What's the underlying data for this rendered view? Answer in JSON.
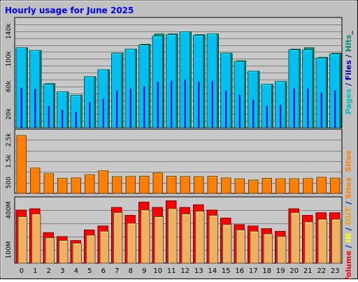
{
  "chart_data": {
    "type": "bar",
    "title": "Hourly usage for June 2025",
    "categories": [
      "0",
      "1",
      "2",
      "3",
      "4",
      "5",
      "6",
      "7",
      "8",
      "9",
      "10",
      "11",
      "12",
      "13",
      "14",
      "15",
      "16",
      "17",
      "18",
      "19",
      "20",
      "21",
      "22",
      "23"
    ],
    "panels": [
      {
        "id": "hits",
        "ylabel_parts": [
          {
            "text": "Pages",
            "color": "#00C0C0"
          },
          {
            "text": " / ",
            "color": "#00008B"
          },
          {
            "text": "Files",
            "color": "#0000CC"
          },
          {
            "text": " / ",
            "color": "#00008B"
          },
          {
            "text": "Hits",
            "color": "#008F6B"
          },
          {
            "text": "_",
            "color": "#00008B"
          }
        ],
        "ylim": [
          0,
          160000
        ],
        "yticks": [
          {
            "value": 20000,
            "label": "20k"
          },
          {
            "value": 60000,
            "label": "60k"
          },
          {
            "value": 100000,
            "label": "100k"
          },
          {
            "value": 140000,
            "label": "140k"
          }
        ],
        "series": [
          {
            "name": "Hits",
            "color": "#008F6B",
            "values": [
              116000,
              112000,
              64000,
              52000,
              47000,
              74000,
              84000,
              108000,
              114000,
              121000,
              136000,
              136000,
              139000,
              135000,
              136000,
              108000,
              97000,
              82000,
              63000,
              67000,
              114000,
              116000,
              102000,
              108000
            ]
          },
          {
            "name": "Files",
            "color": "#00C0F0",
            "values": [
              116000,
              112000,
              63000,
              52000,
              47000,
              74000,
              84000,
              108000,
              114000,
              120000,
              133000,
              135000,
              139000,
              134000,
              136000,
              108000,
              96000,
              82000,
              63000,
              67000,
              113000,
              113000,
              101000,
              107000
            ]
          },
          {
            "name": "Pages",
            "color": "#0000CC",
            "values": [
              58000,
              56000,
              32000,
              26000,
              23000,
              37000,
              42000,
              54000,
              57000,
              60000,
              67000,
              68000,
              70000,
              67000,
              68000,
              54000,
              48000,
              41000,
              32000,
              33000,
              57000,
              57000,
              51000,
              54000
            ]
          }
        ]
      },
      {
        "id": "sites",
        "ylabel_parts": [
          {
            "text": "Sites",
            "color": "#FF8000"
          }
        ],
        "ylim": [
          0,
          3000
        ],
        "yticks": [
          {
            "value": 500,
            "label": "500"
          },
          {
            "value": 1500,
            "label": "1.5k"
          },
          {
            "value": 2500,
            "label": "2.5k"
          }
        ],
        "series": [
          {
            "name": "Sites",
            "color": "#FF8000",
            "values": [
              2700,
              1180,
              920,
              700,
              720,
              870,
              1050,
              780,
              790,
              800,
              950,
              800,
              790,
              780,
              800,
              720,
              680,
              620,
              700,
              680,
              680,
              690,
              750,
              710
            ]
          }
        ]
      },
      {
        "id": "volume",
        "ylabel_parts": [
          {
            "text": "Volume",
            "color": "#FF0000"
          },
          {
            "text": " / ",
            "color": "#00008B"
          },
          {
            "text": "IN",
            "color": "#FFFF00"
          },
          {
            "text": " / ",
            "color": "#00008B"
          },
          {
            "text": "OUT",
            "color": "#F0A000"
          },
          {
            "text": " / ",
            "color": "#00008B"
          },
          {
            "text": "Sites",
            "color": "#FF8000"
          }
        ],
        "ylim": [
          0,
          500000000
        ],
        "yticks": [
          {
            "value": 100000000,
            "label": "100M"
          },
          {
            "value": 400000000,
            "label": "400M"
          }
        ],
        "series": [
          {
            "name": "Volume",
            "color": "#FF0000",
            "values": [
              400000000,
              410000000,
              230000000,
              200000000,
              170000000,
              250000000,
              280000000,
              420000000,
              360000000,
              460000000,
              420000000,
              470000000,
              420000000,
              440000000,
              400000000,
              340000000,
              290000000,
              280000000,
              260000000,
              240000000,
              410000000,
              360000000,
              380000000,
              380000000
            ]
          },
          {
            "name": "OUT",
            "color": "#F0B060",
            "values": [
              350000000,
              370000000,
              190000000,
              170000000,
              150000000,
              210000000,
              240000000,
              380000000,
              300000000,
              400000000,
              350000000,
              410000000,
              370000000,
              390000000,
              360000000,
              290000000,
              250000000,
              240000000,
              220000000,
              200000000,
              380000000,
              310000000,
              330000000,
              330000000
            ]
          }
        ]
      }
    ]
  }
}
